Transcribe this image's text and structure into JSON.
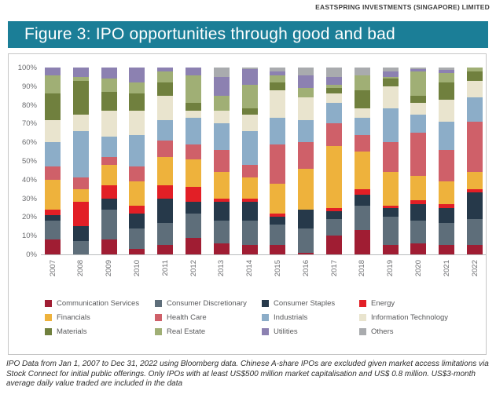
{
  "page": {
    "header": "EASTSPRING INVESTMENTS (SINGAPORE) LIMITED",
    "title": "Figure 3: IPO opportunities through good and bad",
    "footnote": "IPO Data from Jan 1, 2007 to Dec 31, 2022 using Bloomberg data. Chinese A-share IPOs are excluded given market access limitations via Stock Connect for initial public offerings. Only IPOs with at least US$500 million market capitalisation and US$ 0.8 million. US$3-month average daily value traded are included in the data"
  },
  "colors": {
    "title_bar_bg": "#1b7e97",
    "title_text": "#ffffff",
    "axis_text": "#6d6e71",
    "panel_border": "#c6c6c6"
  },
  "chart_data": {
    "type": "bar",
    "stacked": true,
    "unit": "percent",
    "grid": false,
    "legend_position": "bottom",
    "ylim": [
      0,
      100
    ],
    "yticks": [
      "0%",
      "10%",
      "20%",
      "30%",
      "40%",
      "50%",
      "60%",
      "70%",
      "80%",
      "90%",
      "100%"
    ],
    "xlabel": "",
    "ylabel": "",
    "categories": [
      "2007",
      "2008",
      "2009",
      "2010",
      "2011",
      "2012",
      "2013",
      "2014",
      "2015",
      "2016",
      "2017",
      "2018",
      "2019",
      "2020",
      "2021",
      "2022"
    ],
    "series": [
      {
        "name": "Communication Services",
        "color": "#a01d33",
        "values": [
          8,
          0,
          8,
          3,
          5,
          9,
          6,
          5,
          5,
          1,
          10,
          13,
          5,
          6,
          5,
          5
        ]
      },
      {
        "name": "Consumer Discretionary",
        "color": "#5e6e7a",
        "values": [
          10,
          7,
          16,
          11,
          12,
          13,
          12,
          13,
          11,
          13,
          9,
          13,
          15,
          12,
          12,
          14
        ]
      },
      {
        "name": "Consumer Staples",
        "color": "#26394a",
        "values": [
          3,
          8,
          6,
          8,
          13,
          6,
          10,
          10,
          4,
          10,
          4,
          6,
          5,
          9,
          8,
          14
        ]
      },
      {
        "name": "Energy",
        "color": "#e21f26",
        "values": [
          3,
          13,
          7,
          4,
          7,
          8,
          2,
          2,
          2,
          0,
          2,
          3,
          1,
          2,
          2,
          2
        ]
      },
      {
        "name": "Financials",
        "color": "#eeb23c",
        "values": [
          16,
          7,
          11,
          13,
          15,
          15,
          14,
          11,
          16,
          22,
          33,
          20,
          18,
          13,
          12,
          9
        ]
      },
      {
        "name": "Health Care",
        "color": "#cf6069",
        "values": [
          7,
          6,
          4,
          8,
          9,
          8,
          12,
          7,
          21,
          14,
          12,
          9,
          16,
          23,
          17,
          27
        ]
      },
      {
        "name": "Industrials",
        "color": "#8cadc8",
        "values": [
          13,
          25,
          11,
          17,
          11,
          14,
          14,
          18,
          14,
          12,
          11,
          9,
          18,
          10,
          15,
          13
        ]
      },
      {
        "name": "Information Technology",
        "color": "#e9e4ce",
        "values": [
          12,
          9,
          14,
          13,
          13,
          4,
          7,
          9,
          15,
          12,
          5,
          5,
          12,
          6,
          12,
          9
        ]
      },
      {
        "name": "Materials",
        "color": "#70803e",
        "values": [
          14,
          18,
          10,
          9,
          7,
          4,
          0,
          3,
          4,
          0,
          3,
          10,
          4,
          4,
          9,
          5
        ]
      },
      {
        "name": "Real Estate",
        "color": "#a0af75",
        "values": [
          10,
          2,
          7,
          6,
          6,
          15,
          8,
          13,
          4,
          5,
          2,
          8,
          1,
          13,
          5,
          2
        ]
      },
      {
        "name": "Utilities",
        "color": "#8c81b1",
        "values": [
          4,
          5,
          6,
          8,
          2,
          4,
          10,
          8,
          2,
          7,
          4,
          0,
          3,
          1,
          2,
          0
        ]
      },
      {
        "name": "Others",
        "color": "#a9abae",
        "values": [
          0,
          0,
          0,
          0,
          0,
          0,
          5,
          1,
          2,
          4,
          5,
          4,
          2,
          1,
          1,
          0
        ]
      }
    ]
  }
}
